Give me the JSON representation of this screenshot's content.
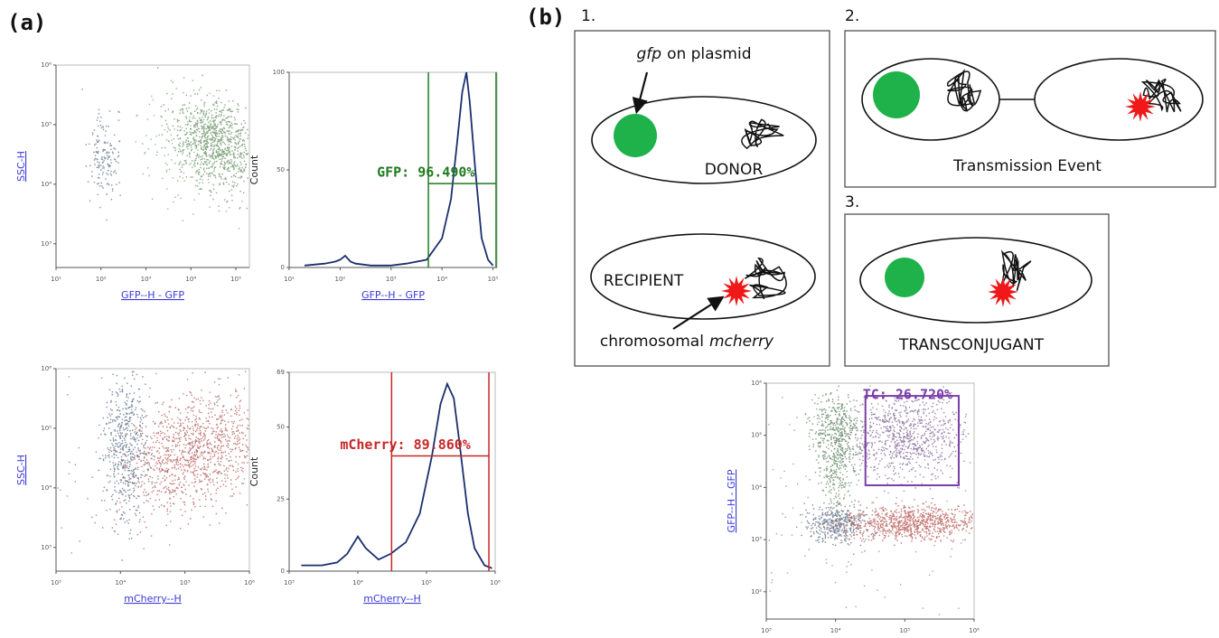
{
  "panel_labels": [
    "(a)",
    "(b)"
  ],
  "chart_data": [
    {
      "type": "scatter",
      "xlabel": "GFP--H - GFP",
      "ylabel": "SSC-H",
      "log_x": true,
      "log_y": true,
      "xlim": [
        10,
        200000
      ],
      "xticks": [
        {
          "value": 10,
          "label": "10¹"
        },
        {
          "value": 100,
          "label": "10²"
        },
        {
          "value": 1000,
          "label": "10³"
        },
        {
          "value": 10000,
          "label": "10⁴"
        },
        {
          "value": 100000,
          "label": "10⁵"
        }
      ],
      "ylim": [
        400,
        1000000
      ],
      "yticks": [
        {
          "value": 1000,
          "label": "10³"
        },
        {
          "value": 10000,
          "label": "10⁴"
        },
        {
          "value": 100000,
          "label": "10⁵"
        },
        {
          "value": 1000000,
          "label": "10⁶"
        }
      ]
    },
    {
      "type": "histogram",
      "xlabel": "GFP--H - GFP",
      "ylabel": "Count",
      "log_x": true,
      "color": "#1b2f6e",
      "xlim": [
        10,
        120000
      ],
      "xticks": [
        {
          "value": 10,
          "label": "10¹"
        },
        {
          "value": 100,
          "label": "10²"
        },
        {
          "value": 1000,
          "label": "10³"
        },
        {
          "value": 10000,
          "label": "10⁴"
        },
        {
          "value": 100000,
          "label": "10⁵"
        }
      ],
      "ylim": [
        0,
        100
      ],
      "yticks": [
        0,
        50,
        100
      ],
      "x": [
        20,
        50,
        80,
        100,
        126,
        160,
        200,
        400,
        1000,
        2000,
        5000,
        10000,
        15000,
        20000,
        25000,
        30000,
        35000,
        45000,
        60000,
        80000,
        100000
      ],
      "values": [
        1,
        2,
        3,
        4,
        6,
        3,
        2,
        1,
        1,
        2,
        4,
        15,
        35,
        65,
        90,
        100,
        85,
        50,
        15,
        4,
        1
      ],
      "gate": {
        "label": "GFP: 96.490%",
        "x": [
          5400,
          115000
        ],
        "y": 43,
        "color": "#217a21"
      }
    },
    {
      "type": "scatter",
      "xlabel": "mCherry--H",
      "ylabel": "SSC-H",
      "log_x": true,
      "log_y": true,
      "xlim": [
        1000,
        1000000
      ],
      "xticks": [
        {
          "value": 1000,
          "label": "10³"
        },
        {
          "value": 10000,
          "label": "10⁴"
        },
        {
          "value": 100000,
          "label": "10⁵"
        },
        {
          "value": 1000000,
          "label": "10⁶"
        }
      ],
      "ylim": [
        400,
        1000000
      ],
      "yticks": [
        {
          "value": 1000,
          "label": "10³"
        },
        {
          "value": 10000,
          "label": "10⁴"
        },
        {
          "value": 100000,
          "label": "10⁵"
        },
        {
          "value": 1000000,
          "label": "10⁶"
        }
      ]
    },
    {
      "type": "histogram",
      "xlabel": "mCherry--H",
      "ylabel": "Count",
      "log_x": true,
      "color": "#1b2f6e",
      "xlim": [
        1000,
        1000000
      ],
      "xticks": [
        {
          "value": 1000,
          "label": "10³"
        },
        {
          "value": 10000,
          "label": "10⁴"
        },
        {
          "value": 100000,
          "label": "10⁵"
        },
        {
          "value": 1000000,
          "label": "10⁶"
        }
      ],
      "ylim": [
        0,
        69
      ],
      "yticks": [
        0,
        25,
        50,
        69
      ],
      "x": [
        1500,
        3000,
        5000,
        7000,
        10000,
        13000,
        20000,
        30000,
        50000,
        80000,
        120000,
        160000,
        200000,
        250000,
        300000,
        400000,
        500000,
        700000,
        900000
      ],
      "values": [
        2,
        2,
        3,
        6,
        12,
        8,
        4,
        6,
        10,
        20,
        40,
        58,
        65,
        60,
        45,
        20,
        8,
        2,
        1
      ],
      "gate": {
        "label": "mCherry: 89.860%",
        "x": [
          31000,
          810000
        ],
        "y": 40,
        "color": "#c62828"
      }
    },
    {
      "type": "scatter",
      "xlabel": "mCherry--H",
      "ylabel": "GFP--H - GFP",
      "log_x": true,
      "log_y": true,
      "xlim": [
        1000,
        1000000
      ],
      "xticks": [
        {
          "value": 1000,
          "label": "10³"
        },
        {
          "value": 10000,
          "label": "10⁴"
        },
        {
          "value": 100000,
          "label": "10⁵"
        },
        {
          "value": 1000000,
          "label": "10⁶"
        }
      ],
      "ylim": [
        30,
        1000000
      ],
      "yticks": [
        {
          "value": 100,
          "label": "10²"
        },
        {
          "value": 1000,
          "label": "10³"
        },
        {
          "value": 10000,
          "label": "10⁴"
        },
        {
          "value": 100000,
          "label": "10⁵"
        },
        {
          "value": 1000000,
          "label": "10⁶"
        }
      ],
      "gate": {
        "label": "TC: 26.720%",
        "x": [
          27000,
          600000
        ],
        "y": [
          11000,
          570000
        ],
        "color": "#7b3fa8"
      }
    }
  ],
  "diagram": {
    "steps": [
      "1.",
      "2.",
      "3."
    ],
    "plasmid_label": {
      "gene": "gfp",
      "rest": "on plasmid"
    },
    "donor": "DONOR",
    "recipient": "RECIPIENT",
    "chromosome_label": {
      "rest": "chromosomal",
      "gene": "mcherry"
    },
    "event": "Transmission Event",
    "transconjugant": "TRANSCONJUGANT"
  }
}
